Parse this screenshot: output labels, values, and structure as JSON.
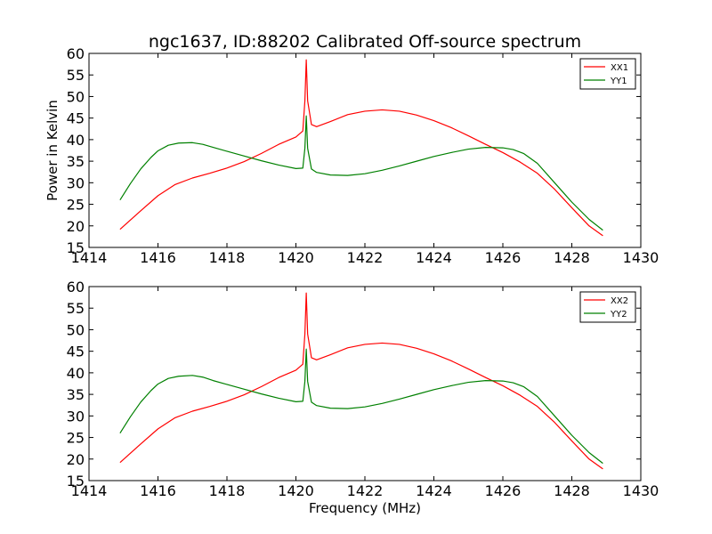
{
  "chart_data": [
    {
      "type": "line",
      "title": "ngc1637, ID:88202 Calibrated Off-source spectrum",
      "xlabel": "",
      "ylabel": "Power in Kelvin",
      "xlim": [
        1414,
        1430
      ],
      "ylim": [
        15,
        60
      ],
      "xticks": [
        1414,
        1416,
        1418,
        1420,
        1422,
        1424,
        1426,
        1428,
        1430
      ],
      "yticks": [
        15,
        20,
        25,
        30,
        35,
        40,
        45,
        50,
        55,
        60
      ],
      "grid": false,
      "legend_position": "top-right",
      "series": [
        {
          "name": "XX1",
          "color": "#ff0000",
          "x": [
            1414.9,
            1415.5,
            1416.0,
            1416.5,
            1417.0,
            1417.5,
            1418.0,
            1418.5,
            1419.0,
            1419.5,
            1420.0,
            1420.2,
            1420.26,
            1420.3,
            1420.34,
            1420.45,
            1420.6,
            1421.0,
            1421.5,
            1422.0,
            1422.5,
            1423.0,
            1423.5,
            1424.0,
            1424.5,
            1425.0,
            1425.5,
            1426.0,
            1426.5,
            1427.0,
            1427.5,
            1428.0,
            1428.5,
            1428.9
          ],
          "y": [
            19.2,
            23.5,
            27.0,
            29.6,
            31.1,
            32.2,
            33.4,
            34.9,
            36.8,
            38.9,
            40.6,
            42.0,
            49.0,
            58.5,
            49.0,
            43.5,
            43.0,
            44.2,
            45.8,
            46.6,
            46.9,
            46.6,
            45.7,
            44.4,
            42.8,
            40.9,
            38.9,
            37.0,
            34.8,
            32.2,
            28.5,
            24.2,
            20.0,
            17.7
          ]
        },
        {
          "name": "YY1",
          "color": "#008000",
          "x": [
            1414.9,
            1415.2,
            1415.5,
            1415.8,
            1416.0,
            1416.3,
            1416.6,
            1417.0,
            1417.3,
            1417.6,
            1418.0,
            1418.5,
            1419.0,
            1419.5,
            1420.0,
            1420.2,
            1420.26,
            1420.3,
            1420.34,
            1420.45,
            1420.6,
            1421.0,
            1421.5,
            1422.0,
            1422.5,
            1423.0,
            1423.5,
            1424.0,
            1424.5,
            1425.0,
            1425.5,
            1426.0,
            1426.3,
            1426.6,
            1427.0,
            1427.5,
            1428.0,
            1428.5,
            1428.9
          ],
          "y": [
            26.0,
            29.8,
            33.2,
            35.9,
            37.4,
            38.7,
            39.2,
            39.3,
            38.9,
            38.2,
            37.3,
            36.2,
            35.1,
            34.1,
            33.3,
            33.4,
            38.0,
            45.5,
            38.0,
            33.2,
            32.4,
            31.8,
            31.7,
            32.1,
            32.9,
            33.9,
            35.0,
            36.1,
            37.0,
            37.8,
            38.2,
            38.1,
            37.7,
            36.8,
            34.5,
            30.0,
            25.5,
            21.5,
            19.0
          ]
        }
      ]
    },
    {
      "type": "line",
      "title": "",
      "xlabel": "Frequency (MHz)",
      "ylabel": "",
      "xlim": [
        1414,
        1430
      ],
      "ylim": [
        15,
        60
      ],
      "xticks": [
        1414,
        1416,
        1418,
        1420,
        1422,
        1424,
        1426,
        1428,
        1430
      ],
      "yticks": [
        15,
        20,
        25,
        30,
        35,
        40,
        45,
        50,
        55,
        60
      ],
      "grid": false,
      "legend_position": "top-right",
      "series": [
        {
          "name": "XX2",
          "color": "#ff0000",
          "x": [
            1414.9,
            1415.5,
            1416.0,
            1416.5,
            1417.0,
            1417.5,
            1418.0,
            1418.5,
            1419.0,
            1419.5,
            1420.0,
            1420.2,
            1420.26,
            1420.3,
            1420.34,
            1420.45,
            1420.6,
            1421.0,
            1421.5,
            1422.0,
            1422.5,
            1423.0,
            1423.5,
            1424.0,
            1424.5,
            1425.0,
            1425.5,
            1426.0,
            1426.5,
            1427.0,
            1427.5,
            1428.0,
            1428.5,
            1428.9
          ],
          "y": [
            19.2,
            23.5,
            27.0,
            29.6,
            31.1,
            32.2,
            33.4,
            34.9,
            36.8,
            38.9,
            40.6,
            42.0,
            49.0,
            58.5,
            49.0,
            43.5,
            43.0,
            44.2,
            45.8,
            46.6,
            46.9,
            46.6,
            45.7,
            44.4,
            42.8,
            40.9,
            38.9,
            37.0,
            34.8,
            32.2,
            28.5,
            24.2,
            20.0,
            17.7
          ]
        },
        {
          "name": "YY2",
          "color": "#008000",
          "x": [
            1414.9,
            1415.2,
            1415.5,
            1415.8,
            1416.0,
            1416.3,
            1416.6,
            1417.0,
            1417.3,
            1417.6,
            1418.0,
            1418.5,
            1419.0,
            1419.5,
            1420.0,
            1420.2,
            1420.26,
            1420.3,
            1420.34,
            1420.45,
            1420.6,
            1421.0,
            1421.5,
            1422.0,
            1422.5,
            1423.0,
            1423.5,
            1424.0,
            1424.5,
            1425.0,
            1425.5,
            1426.0,
            1426.3,
            1426.6,
            1427.0,
            1427.5,
            1428.0,
            1428.5,
            1428.9
          ],
          "y": [
            26.0,
            29.8,
            33.2,
            35.9,
            37.4,
            38.7,
            39.2,
            39.4,
            39.0,
            38.2,
            37.3,
            36.2,
            35.1,
            34.1,
            33.3,
            33.4,
            38.0,
            45.5,
            38.0,
            33.2,
            32.4,
            31.8,
            31.7,
            32.1,
            32.9,
            33.9,
            35.0,
            36.1,
            37.0,
            37.8,
            38.2,
            38.1,
            37.7,
            36.8,
            34.5,
            30.0,
            25.5,
            21.5,
            19.0
          ]
        }
      ]
    }
  ]
}
